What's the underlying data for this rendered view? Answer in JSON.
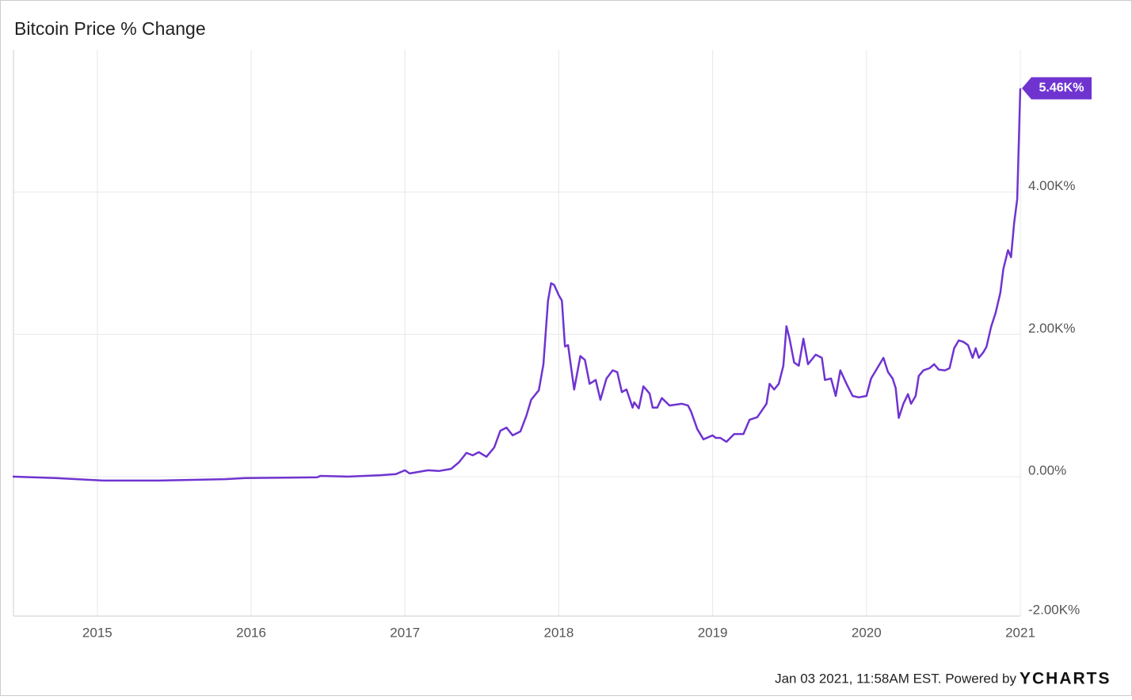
{
  "chart_data": {
    "type": "line",
    "title": "Bitcoin Price % Change",
    "x": [
      2014.45,
      2014.73,
      2015.04,
      2015.4,
      2015.83,
      2015.96,
      2016.43,
      2016.45,
      2016.63,
      2016.84,
      2016.94,
      2017.0,
      2017.03,
      2017.15,
      2017.22,
      2017.3,
      2017.35,
      2017.4,
      2017.44,
      2017.48,
      2017.53,
      2017.58,
      2017.62,
      2017.66,
      2017.7,
      2017.75,
      2017.79,
      2017.82,
      2017.87,
      2017.9,
      2017.93,
      2017.95,
      2017.97,
      2018.0,
      2018.02,
      2018.04,
      2018.06,
      2018.1,
      2018.14,
      2018.17,
      2018.2,
      2018.24,
      2018.27,
      2018.31,
      2018.35,
      2018.38,
      2018.41,
      2018.44,
      2018.48,
      2018.49,
      2018.52,
      2018.55,
      2018.59,
      2018.61,
      2018.64,
      2018.67,
      2018.72,
      2018.8,
      2018.84,
      2018.86,
      2018.9,
      2018.94,
      2019.0,
      2019.02,
      2019.05,
      2019.09,
      2019.14,
      2019.2,
      2019.24,
      2019.29,
      2019.35,
      2019.37,
      2019.4,
      2019.43,
      2019.46,
      2019.48,
      2019.5,
      2019.53,
      2019.56,
      2019.59,
      2019.62,
      2019.67,
      2019.71,
      2019.73,
      2019.77,
      2019.8,
      2019.83,
      2019.87,
      2019.91,
      2019.95,
      2020.0,
      2020.03,
      2020.07,
      2020.11,
      2020.14,
      2020.17,
      2020.19,
      2020.21,
      2020.24,
      2020.27,
      2020.29,
      2020.32,
      2020.34,
      2020.37,
      2020.41,
      2020.44,
      2020.47,
      2020.51,
      2020.54,
      2020.57,
      2020.6,
      2020.63,
      2020.66,
      2020.69,
      2020.71,
      2020.73,
      2020.76,
      2020.78,
      2020.81,
      2020.84,
      2020.87,
      2020.89,
      2020.92,
      2020.94,
      2020.96,
      2020.98,
      2021.0
    ],
    "values": [
      0,
      -20,
      -55,
      -55,
      -35,
      -20,
      -10,
      10,
      0,
      20,
      35,
      90,
      45,
      90,
      80,
      110,
      200,
      335,
      300,
      345,
      280,
      410,
      645,
      690,
      580,
      635,
      860,
      1080,
      1215,
      1580,
      2475,
      2720,
      2695,
      2550,
      2475,
      1830,
      1850,
      1225,
      1695,
      1640,
      1305,
      1360,
      1080,
      1380,
      1495,
      1470,
      1190,
      1225,
      970,
      1045,
      960,
      1270,
      1170,
      970,
      970,
      1105,
      1000,
      1025,
      1000,
      915,
      670,
      525,
      580,
      545,
      545,
      490,
      600,
      600,
      800,
      835,
      1025,
      1305,
      1225,
      1305,
      1560,
      2115,
      1940,
      1605,
      1560,
      1940,
      1580,
      1715,
      1670,
      1360,
      1380,
      1135,
      1495,
      1305,
      1135,
      1115,
      1135,
      1380,
      1525,
      1670,
      1470,
      1380,
      1245,
      825,
      1025,
      1160,
      1025,
      1135,
      1415,
      1495,
      1525,
      1580,
      1505,
      1495,
      1525,
      1805,
      1915,
      1895,
      1850,
      1670,
      1805,
      1670,
      1750,
      1825,
      2105,
      2305,
      2585,
      2920,
      3185,
      3085,
      3565,
      3900,
      5460
    ],
    "color": "#6f34d0",
    "end_label": "5.46K%",
    "xlim": [
      2014.455,
      2021
    ],
    "xticks": [
      2015,
      2016,
      2017,
      2018,
      2019,
      2020,
      2021
    ],
    "ylim": [
      -1960,
      6000
    ],
    "yticks": [
      {
        "value": -2000,
        "label": "-2.00K%"
      },
      {
        "value": 0,
        "label": "0.00%"
      },
      {
        "value": 2000,
        "label": "2.00K%"
      },
      {
        "value": 4000,
        "label": "4.00K%"
      }
    ],
    "grid": true
  },
  "footer": {
    "text": "Jan 03 2021, 11:58AM EST. Powered by",
    "brand": "YCHARTS"
  }
}
